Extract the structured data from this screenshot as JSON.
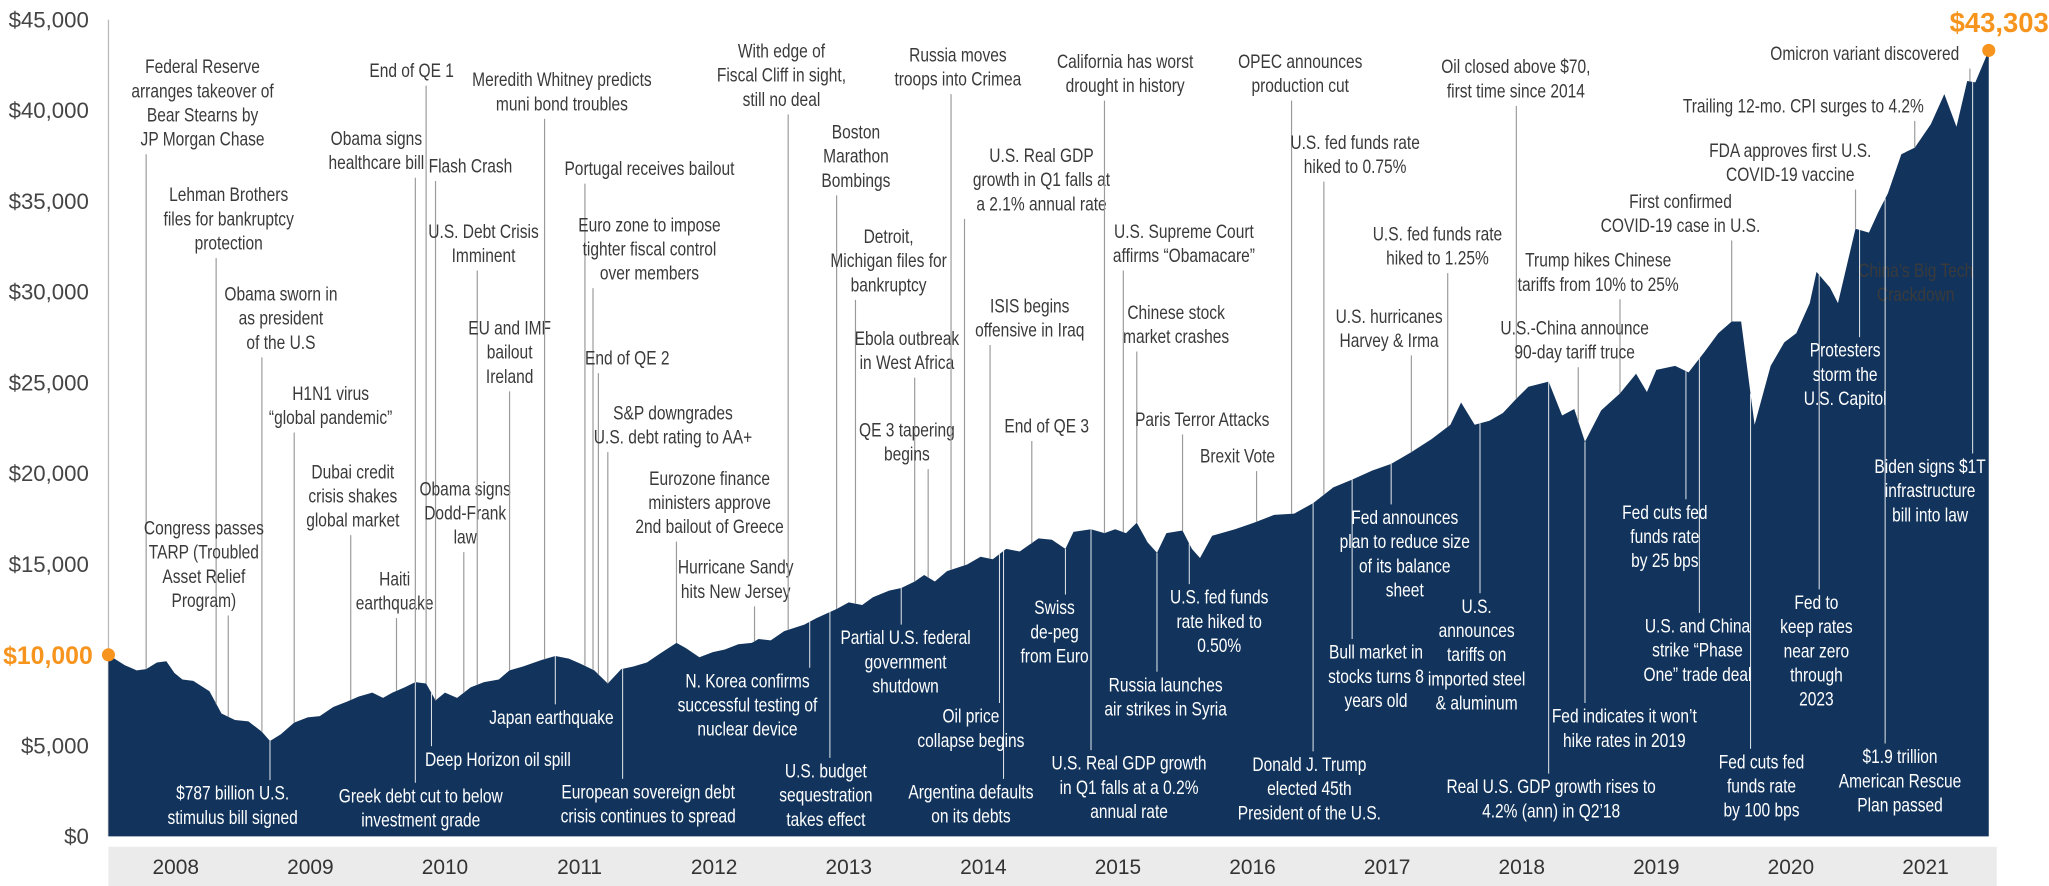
{
  "chart_data": {
    "type": "area",
    "color": "#12345c",
    "highlight_color": "#f7941d",
    "xlim": [
      2008,
      2022
    ],
    "ylim": [
      0,
      45000
    ],
    "xticks": [
      {
        "value": 2008.5,
        "label": "2008"
      },
      {
        "value": 2009.5,
        "label": "2009"
      },
      {
        "value": 2010.5,
        "label": "2010"
      },
      {
        "value": 2011.5,
        "label": "2011"
      },
      {
        "value": 2012.5,
        "label": "2012"
      },
      {
        "value": 2013.5,
        "label": "2013"
      },
      {
        "value": 2014.5,
        "label": "2014"
      },
      {
        "value": 2015.5,
        "label": "2015"
      },
      {
        "value": 2016.5,
        "label": "2016"
      },
      {
        "value": 2017.5,
        "label": "2017"
      },
      {
        "value": 2018.5,
        "label": "2018"
      },
      {
        "value": 2019.5,
        "label": "2019"
      },
      {
        "value": 2020.5,
        "label": "2020"
      },
      {
        "value": 2021.5,
        "label": "2021"
      }
    ],
    "yticks": [
      {
        "value": 0,
        "label": "$0"
      },
      {
        "value": 5000,
        "label": "$5,000"
      },
      {
        "value": 15000,
        "label": "$15,000"
      },
      {
        "value": 20000,
        "label": "$20,000"
      },
      {
        "value": 25000,
        "label": "$25,000"
      },
      {
        "value": 30000,
        "label": "$30,000"
      },
      {
        "value": 35000,
        "label": "$35,000"
      },
      {
        "value": 40000,
        "label": "$40,000"
      },
      {
        "value": 45000,
        "label": "$45,000"
      }
    ],
    "x": [
      2008.0,
      2008.12,
      2008.21,
      2008.28,
      2008.36,
      2008.43,
      2008.49,
      2008.55,
      2008.63,
      2008.75,
      2008.84,
      2008.94,
      2009.04,
      2009.14,
      2009.2,
      2009.28,
      2009.38,
      2009.48,
      2009.57,
      2009.67,
      2009.77,
      2009.86,
      2009.96,
      2010.04,
      2010.11,
      2010.2,
      2010.28,
      2010.36,
      2010.43,
      2010.5,
      2010.59,
      2010.69,
      2010.79,
      2010.9,
      2010.98,
      2011.08,
      2011.22,
      2011.32,
      2011.42,
      2011.51,
      2011.61,
      2011.71,
      2011.81,
      2011.9,
      2012.0,
      2012.1,
      2012.22,
      2012.29,
      2012.39,
      2012.49,
      2012.58,
      2012.68,
      2012.78,
      2012.83,
      2012.92,
      2013.02,
      2013.17,
      2013.26,
      2013.41,
      2013.5,
      2013.6,
      2013.68,
      2013.8,
      2013.89,
      2013.99,
      2014.06,
      2014.14,
      2014.23,
      2014.38,
      2014.48,
      2014.57,
      2014.67,
      2014.77,
      2014.91,
      2015.01,
      2015.11,
      2015.17,
      2015.3,
      2015.4,
      2015.48,
      2015.56,
      2015.64,
      2015.72,
      2015.79,
      2015.86,
      2015.98,
      2016.05,
      2016.11,
      2016.2,
      2016.37,
      2016.51,
      2016.66,
      2016.81,
      2016.95,
      2017.1,
      2017.24,
      2017.39,
      2017.53,
      2017.68,
      2017.83,
      2017.97,
      2018.05,
      2018.15,
      2018.26,
      2018.36,
      2018.46,
      2018.55,
      2018.7,
      2018.8,
      2018.89,
      2018.97,
      2019.09,
      2019.23,
      2019.35,
      2019.43,
      2019.5,
      2019.64,
      2019.74,
      2019.86,
      2019.96,
      2020.06,
      2020.13,
      2020.23,
      2020.35,
      2020.45,
      2020.54,
      2020.64,
      2020.69,
      2020.79,
      2020.85,
      2020.98,
      2021.08,
      2021.15,
      2021.22,
      2021.32,
      2021.42,
      2021.54,
      2021.64,
      2021.73,
      2021.81,
      2021.87,
      2021.97
    ],
    "values": [
      10000,
      9432,
      9144,
      9216,
      9576,
      9648,
      9000,
      8640,
      8568,
      7992,
      6768,
      6408,
      6336,
      5760,
      5256,
      5616,
      6264,
      6552,
      6624,
      7128,
      7416,
      7704,
      7920,
      7632,
      7920,
      8208,
      8496,
      8424,
      7488,
      7920,
      7632,
      8208,
      8496,
      8640,
      9144,
      9360,
      9720,
      9936,
      9792,
      9504,
      9144,
      8424,
      9216,
      9360,
      9576,
      10080,
      10656,
      10368,
      9864,
      10152,
      10296,
      10584,
      10656,
      10872,
      10800,
      11304,
      11664,
      12024,
      12528,
      12888,
      12744,
      13176,
      13536,
      13680,
      14040,
      14400,
      14040,
      14616,
      14976,
      15408,
      15264,
      15840,
      15696,
      16416,
      16344,
      15840,
      16776,
      16920,
      16704,
      16920,
      16704,
      17280,
      16200,
      15624,
      16704,
      16848,
      15840,
      15336,
      16560,
      16920,
      17280,
      17712,
      17784,
      18360,
      19224,
      19656,
      20160,
      20520,
      21168,
      21888,
      22680,
      23904,
      22680,
      22896,
      23328,
      24120,
      24768,
      25056,
      23184,
      23544,
      21744,
      23472,
      24408,
      25488,
      24480,
      25704,
      25920,
      25560,
      26712,
      27720,
      28368,
      28368,
      22680,
      25920,
      27216,
      27720,
      29376,
      31104,
      30240,
      29376,
      33480,
      33264,
      34416,
      35424,
      37584,
      37944,
      39240,
      40896,
      39096,
      41616,
      41544,
      43303
    ],
    "value_labels": [
      "$10,000",
      null,
      null,
      null,
      null,
      null,
      null,
      null,
      null,
      null,
      null,
      null,
      null,
      null,
      null,
      null,
      null,
      null,
      null,
      null,
      null,
      null,
      null,
      null,
      null,
      null,
      null,
      null,
      null,
      null,
      null,
      null,
      null,
      null,
      null,
      null,
      null,
      null,
      null,
      null,
      null,
      null,
      null,
      null,
      null,
      null,
      null,
      null,
      null,
      null,
      null,
      null,
      null,
      null,
      null,
      null,
      null,
      null,
      null,
      null,
      null,
      null,
      null,
      null,
      null,
      null,
      null,
      null,
      null,
      null,
      null,
      null,
      null,
      null,
      null,
      null,
      null,
      null,
      null,
      null,
      null,
      null,
      null,
      null,
      null,
      null,
      null,
      null,
      null,
      null,
      null,
      null,
      null,
      null,
      null,
      null,
      null,
      null,
      null,
      null,
      null,
      null,
      null,
      null,
      null,
      null,
      null,
      null,
      null,
      null,
      null,
      null,
      null,
      null,
      null,
      null,
      null,
      null,
      null,
      null,
      null,
      null,
      null,
      null,
      null,
      null,
      null,
      null,
      null,
      null,
      null,
      null,
      null,
      null,
      null,
      null,
      null,
      null,
      null,
      null,
      null,
      "$43,303"
    ],
    "annotations": [
      {
        "x": 2008.28,
        "lines": [
          "Federal Reserve",
          "arranges takeover of",
          "Bear Stearns by",
          "JP Morgan Chase"
        ]
      },
      {
        "x": 2008.8,
        "lines": [
          "Lehman Brothers",
          "files for bankruptcy",
          "protection"
        ]
      },
      {
        "x": 2009.14,
        "lines": [
          "Obama sworn in",
          "as president",
          "of the U.S"
        ]
      },
      {
        "x": 2008.89,
        "lines": [
          "Congress passes",
          "TARP (Troubled",
          "Asset Relief",
          "Program)"
        ]
      },
      {
        "x": 2009.38,
        "lines": [
          "H1N1 virus",
          "“global pandemic”"
        ]
      },
      {
        "x": 2009.8,
        "lines": [
          "Dubai credit",
          "crisis shakes",
          "global market"
        ]
      },
      {
        "x": 2010.14,
        "lines": [
          "Haiti",
          "earthquake"
        ]
      },
      {
        "x": 2010.28,
        "lines": [
          "Obama signs",
          "healthcare bill"
        ]
      },
      {
        "x": 2010.36,
        "lines": [
          "End of QE 1"
        ]
      },
      {
        "x": 2010.43,
        "lines": [
          "Flash Crash"
        ]
      },
      {
        "x": 2010.64,
        "lines": [
          "Obama signs",
          "Dodd-Frank",
          "law"
        ]
      },
      {
        "x": 2010.74,
        "lines": [
          "U.S. Debt Crisis",
          "Imminent"
        ]
      },
      {
        "x": 2010.98,
        "lines": [
          "EU and IMF",
          "bailout",
          "Ireland"
        ]
      },
      {
        "x": 2011.24,
        "lines": [
          "Meredith Whitney predicts",
          "muni bond troubles"
        ]
      },
      {
        "x": 2011.54,
        "lines": [
          "Portugal receives bailout"
        ]
      },
      {
        "x": 2011.6,
        "lines": [
          "Euro zone to impose",
          "tighter fiscal control",
          "over members"
        ]
      },
      {
        "x": 2011.64,
        "lines": [
          "End of QE 2"
        ]
      },
      {
        "x": 2011.71,
        "lines": [
          "S&P downgrades",
          "U.S. debt rating to AA+"
        ]
      },
      {
        "x": 2012.22,
        "lines": [
          "Eurozone finance",
          "ministers approve",
          "2nd bailout of Greece"
        ]
      },
      {
        "x": 2012.8,
        "lines": [
          "Hurricane Sandy",
          "hits New Jersey"
        ]
      },
      {
        "x": 2013.05,
        "lines": [
          "With edge of",
          "Fiscal Cliff in sight,",
          "still no deal"
        ]
      },
      {
        "x": 2013.41,
        "lines": [
          "Boston",
          "Marathon",
          "Bombings"
        ]
      },
      {
        "x": 2013.55,
        "lines": [
          "Detroit,",
          "Michigan files for",
          "bankruptcy"
        ]
      },
      {
        "x": 2013.99,
        "lines": [
          "Ebola outbreak",
          "in West Africa"
        ]
      },
      {
        "x": 2014.09,
        "lines": [
          "QE 3 tapering",
          "begins"
        ]
      },
      {
        "x": 2014.26,
        "lines": [
          "Russia moves",
          "troops into Crimea"
        ]
      },
      {
        "x": 2014.36,
        "lines": [
          "U.S. Real GDP",
          "growth in Q1 falls at",
          "a 2.1% annual rate"
        ]
      },
      {
        "x": 2014.55,
        "lines": [
          "ISIS begins",
          "offensive in Iraq"
        ]
      },
      {
        "x": 2014.86,
        "lines": [
          "End of QE 3"
        ]
      },
      {
        "x": 2015.4,
        "lines": [
          "California has worst",
          "drought in history"
        ]
      },
      {
        "x": 2015.54,
        "lines": [
          "U.S. Supreme Court",
          "affirms “Obamacare”"
        ]
      },
      {
        "x": 2015.64,
        "lines": [
          "Chinese stock",
          "market crashes"
        ]
      },
      {
        "x": 2015.98,
        "lines": [
          "Paris Terror Attacks"
        ]
      },
      {
        "x": 2016.53,
        "lines": [
          "Brexit Vote"
        ]
      },
      {
        "x": 2016.79,
        "lines": [
          "OPEC announces",
          "production cut"
        ]
      },
      {
        "x": 2017.03,
        "lines": [
          "U.S. fed funds rate",
          "hiked to 0.75%"
        ]
      },
      {
        "x": 2017.95,
        "lines": [
          "U.S. fed funds rate",
          "hiked to 1.25%"
        ]
      },
      {
        "x": 2017.68,
        "lines": [
          "U.S. hurricanes",
          "Harvey & Irma"
        ]
      },
      {
        "x": 2018.46,
        "lines": [
          "Oil closed above $70,",
          "first time since 2014"
        ]
      },
      {
        "x": 2019.23,
        "lines": [
          "Trump hikes Chinese",
          "tariffs from 10% to 25%"
        ]
      },
      {
        "x": 2018.92,
        "lines": [
          "U.S.-China announce",
          "90-day tariff truce"
        ]
      },
      {
        "x": 2020.06,
        "lines": [
          "First confirmed",
          "COVID-19 case in U.S."
        ]
      },
      {
        "x": 2021.42,
        "lines": [
          "Trailing 12-mo. CPI surges to 4.2%"
        ]
      },
      {
        "x": 2021.83,
        "lines": [
          "Omicron variant discovered"
        ]
      },
      {
        "x": 2020.98,
        "lines": [
          "FDA approves first U.S.",
          "COVID-19 vaccine"
        ]
      },
      {
        "x": 2021.56,
        "lines": [
          "China’s Big Tech",
          "Crackdown"
        ]
      },
      {
        "x": 2009.2,
        "lines": [
          "$787 billion U.S.",
          "stimulus bill signed"
        ]
      },
      {
        "x": 2010.4,
        "lines": [
          "Deep Horizon oil spill"
        ]
      },
      {
        "x": 2010.28,
        "lines": [
          "Greek debt cut to below",
          "investment grade"
        ]
      },
      {
        "x": 2011.32,
        "lines": [
          "Japan earthquake"
        ]
      },
      {
        "x": 2011.82,
        "lines": [
          "European sovereign debt",
          "crisis continues to spread"
        ]
      },
      {
        "x": 2013.21,
        "lines": [
          "N. Korea confirms",
          "successful testing of",
          "nuclear device"
        ]
      },
      {
        "x": 2013.36,
        "lines": [
          "U.S. budget",
          "sequestration",
          "takes effect"
        ]
      },
      {
        "x": 2013.89,
        "lines": [
          "Partial U.S. federal",
          "government",
          "shutdown"
        ]
      },
      {
        "x": 2014.62,
        "lines": [
          "Oil price",
          "collapse begins"
        ]
      },
      {
        "x": 2014.65,
        "lines": [
          "Argentina defaults",
          "on its debts"
        ]
      },
      {
        "x": 2015.11,
        "lines": [
          "Swiss",
          "de-peg",
          "from Euro"
        ]
      },
      {
        "x": 2015.3,
        "lines": [
          "U.S. Real GDP growth",
          "in Q1 falls at a 0.2%",
          "annual rate"
        ]
      },
      {
        "x": 2015.79,
        "lines": [
          "Russia launches",
          "air strikes in Syria"
        ]
      },
      {
        "x": 2016.03,
        "lines": [
          "U.S. fed funds",
          "rate hiked to",
          "0.50%"
        ]
      },
      {
        "x": 2016.95,
        "lines": [
          "Donald J. Trump",
          "elected 45th",
          "President of the U.S."
        ]
      },
      {
        "x": 2017.53,
        "lines": [
          "Fed announces",
          "plan to reduce size",
          "of its balance",
          "sheet"
        ]
      },
      {
        "x": 2017.24,
        "lines": [
          "Bull market in",
          "stocks turns 8",
          "years old"
        ]
      },
      {
        "x": 2018.19,
        "lines": [
          "U.S.",
          "announces",
          "tariffs on",
          "imported steel",
          "& aluminum"
        ]
      },
      {
        "x": 2018.7,
        "lines": [
          "Real U.S. GDP growth rises to",
          "4.2% (ann) in Q2’18"
        ]
      },
      {
        "x": 2018.97,
        "lines": [
          "Fed indicates it won’t",
          "hike rates in 2019"
        ]
      },
      {
        "x": 2019.72,
        "lines": [
          "Fed cuts fed",
          "funds rate",
          "by 25 bps"
        ]
      },
      {
        "x": 2019.82,
        "lines": [
          "U.S. and China",
          "strike “Phase",
          "One” trade deal"
        ]
      },
      {
        "x": 2020.2,
        "lines": [
          "Fed cuts fed",
          "funds rate",
          "by 100 bps"
        ]
      },
      {
        "x": 2020.71,
        "lines": [
          "Fed to",
          "keep rates",
          "near zero",
          "through",
          "2023"
        ]
      },
      {
        "x": 2021.01,
        "lines": [
          "Protesters",
          "storm the",
          "U.S. Capitol"
        ]
      },
      {
        "x": 2021.2,
        "lines": [
          "$1.9 trillion",
          "American Rescue",
          "Plan passed"
        ]
      },
      {
        "x": 2021.85,
        "lines": [
          "Biden signs $1T",
          "infrastructure",
          "bill into law"
        ]
      }
    ]
  }
}
